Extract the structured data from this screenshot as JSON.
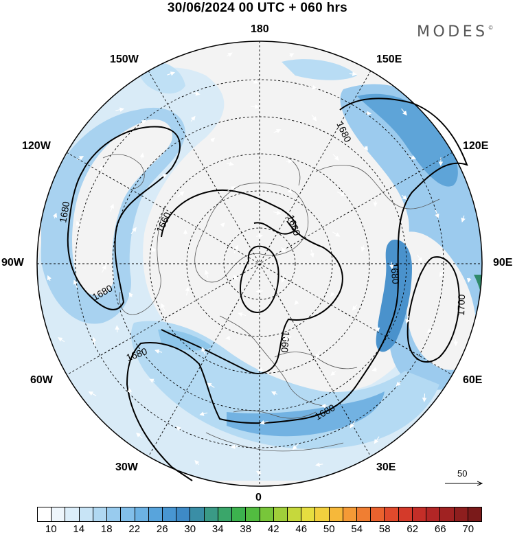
{
  "header": {
    "title": "30/06/2024  00 UTC  + 060 hrs",
    "logo_text": "MODES"
  },
  "map": {
    "projection": "north-polar-stereographic",
    "longitude_labels": [
      {
        "id": "lon-180",
        "text": "180"
      },
      {
        "id": "lon-150e",
        "text": "150E"
      },
      {
        "id": "lon-120e",
        "text": "120E"
      },
      {
        "id": "lon-90e",
        "text": "90E"
      },
      {
        "id": "lon-60e",
        "text": "60E"
      },
      {
        "id": "lon-30e",
        "text": "30E"
      },
      {
        "id": "lon-0",
        "text": "0"
      },
      {
        "id": "lon-30w",
        "text": "30W"
      },
      {
        "id": "lon-60w",
        "text": "60W"
      },
      {
        "id": "lon-90w",
        "text": "90W"
      },
      {
        "id": "lon-120w",
        "text": "120W"
      },
      {
        "id": "lon-150w",
        "text": "150W"
      }
    ],
    "contour_labels": [
      "1680",
      "1680",
      "1680",
      "1680",
      "1680",
      "1680",
      "1660",
      "1660",
      "1660",
      "1700"
    ],
    "wind_reference": {
      "value": "50"
    },
    "colors": {
      "land_fill": "#f2f2f2",
      "coast": "#555555",
      "wind_light": "#d2e8f6",
      "wind_mid": "#8ec6ea",
      "wind_strong": "#4a98d0",
      "wind_max": "#2e7ec0"
    }
  },
  "colorbar": {
    "ticks": [
      "10",
      "14",
      "18",
      "22",
      "26",
      "30",
      "34",
      "38",
      "42",
      "46",
      "50",
      "54",
      "58",
      "62",
      "66",
      "70"
    ],
    "colors": [
      "#ffffff",
      "#eef6fc",
      "#dceefa",
      "#c8e4f6",
      "#b0d8f2",
      "#98cbee",
      "#82bfea",
      "#6cb2e4",
      "#58a4dc",
      "#4896d2",
      "#3e8ac6",
      "#3a8ea6",
      "#3a9a86",
      "#3aa66a",
      "#3cb24e",
      "#52bc40",
      "#78c63a",
      "#a0cf3a",
      "#c6d83c",
      "#e6de40",
      "#f2d03e",
      "#f6b83a",
      "#f49a36",
      "#f07e32",
      "#ea622e",
      "#e04a2c",
      "#d43a2a",
      "#c42e28",
      "#b22626",
      "#a02222",
      "#8e1e1e",
      "#7a1a1a"
    ]
  }
}
